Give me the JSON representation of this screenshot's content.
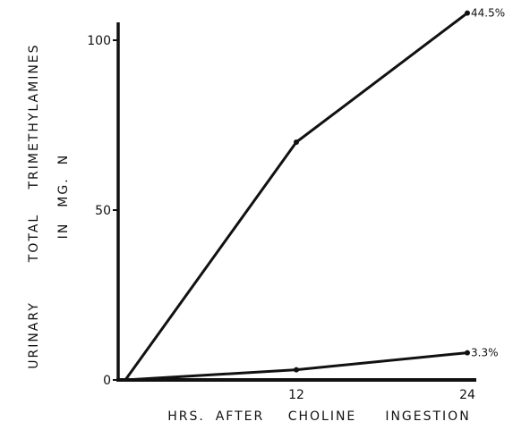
{
  "chart_data": {
    "type": "line",
    "title": "",
    "xlabel_words": [
      "HRS.",
      "AFTER",
      "CHOLINE",
      "INGESTION"
    ],
    "ylabel_lines": [
      [
        "URINARY",
        "TOTAL",
        "TRIMETHYLAMINES"
      ],
      [
        "IN",
        "MG.",
        "N"
      ]
    ],
    "x_ticks": [
      12,
      24
    ],
    "y_ticks": [
      0,
      50,
      100
    ],
    "xlim": [
      0,
      24
    ],
    "ylim": [
      0,
      105
    ],
    "grid": false,
    "series": [
      {
        "name": "",
        "x": [
          0,
          12,
          24
        ],
        "y": [
          0,
          70,
          108
        ],
        "end_label": "44.5%"
      },
      {
        "name": "",
        "x": [
          0,
          12,
          24
        ],
        "y": [
          0,
          3,
          8
        ],
        "end_label": "3.3%"
      }
    ]
  }
}
